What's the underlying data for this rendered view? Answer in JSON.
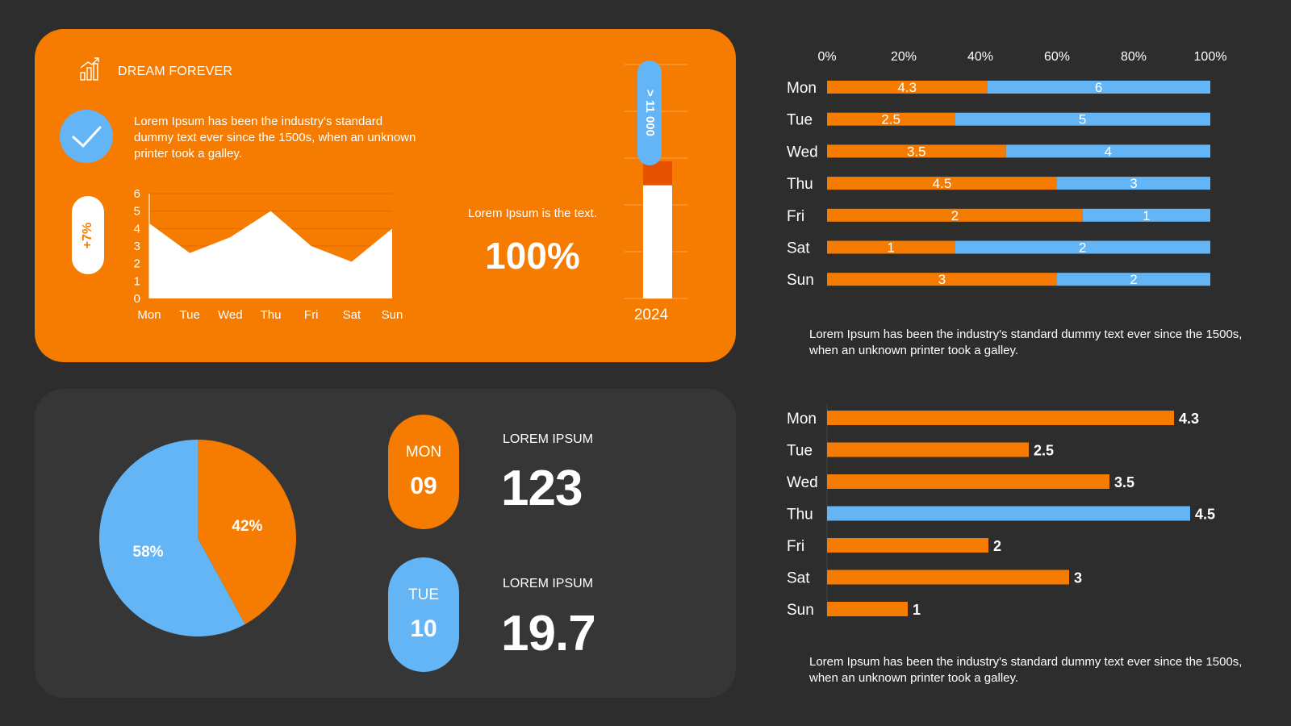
{
  "colors": {
    "background": "#2d2d2d",
    "orange": "#f57c00",
    "blue": "#64b5f6",
    "dark_panel": "#363636",
    "white": "#ffffff"
  },
  "header": {
    "brand_icon": "bar-chart-growth-icon",
    "brand_label": "DREAM FOREVER"
  },
  "intro": {
    "check_icon": "checkmark-icon",
    "text": "Lorem Ipsum has been the industry's standard dummy text ever since the 1500s, when an unknown printer took a galley."
  },
  "growth_badge": "+7%",
  "highlight": {
    "caption": "Lorem Ipsum is the text.",
    "value": "100%"
  },
  "gauge": {
    "label": "> 11 000",
    "year": "2024",
    "level": 0.5
  },
  "stats": [
    {
      "day": "MON",
      "date": "09",
      "label": "LOREM IPSUM",
      "value": "123"
    },
    {
      "day": "TUE",
      "date": "10",
      "label": "LOREM IPSUM",
      "value": "19.7"
    }
  ],
  "paragraphs": {
    "top": "Lorem Ipsum has been the industry's standard dummy text ever since the 1500s, when an unknown printer took a galley.",
    "bottom": "Lorem Ipsum has been the industry's standard dummy text ever since the 1500s, when an unknown printer took a galley."
  },
  "chart_data": [
    {
      "id": "area",
      "type": "area",
      "categories": [
        "Mon",
        "Tue",
        "Wed",
        "Thu",
        "Fri",
        "Sat",
        "Sun"
      ],
      "values": [
        4.3,
        2.6,
        3.5,
        5.0,
        3.0,
        2.1,
        4.0
      ],
      "ylim": [
        0,
        6
      ],
      "yticks": [
        0,
        1,
        2,
        3,
        4,
        5,
        6
      ],
      "grid": true
    },
    {
      "id": "stacked",
      "type": "bar",
      "orientation": "horizontal",
      "stacked": "percent",
      "categories": [
        "Mon",
        "Tue",
        "Wed",
        "Thu",
        "Fri",
        "Sat",
        "Sun"
      ],
      "series": [
        {
          "values": [
            4.3,
            2.5,
            3.5,
            4.5,
            2,
            1,
            3
          ],
          "color": "#f57c00"
        },
        {
          "values": [
            6,
            5,
            4,
            3,
            1,
            2,
            2
          ],
          "color": "#64b5f6"
        }
      ],
      "xticks": [
        "0%",
        "20%",
        "40%",
        "60%",
        "80%",
        "100%"
      ],
      "xaxis_position": "top"
    },
    {
      "id": "simple",
      "type": "bar",
      "orientation": "horizontal",
      "categories": [
        "Mon",
        "Tue",
        "Wed",
        "Thu",
        "Fri",
        "Sat",
        "Sun"
      ],
      "values": [
        4.3,
        2.5,
        3.5,
        4.5,
        2,
        3,
        1
      ],
      "highlight_category": "Thu",
      "bar_color": "#f57c00",
      "highlight_color": "#64b5f6",
      "xlim": [
        0,
        5
      ]
    },
    {
      "id": "pie",
      "type": "pie",
      "slices": [
        {
          "label": "42%",
          "value": 42,
          "color": "#f57c00"
        },
        {
          "label": "58%",
          "value": 58,
          "color": "#64b5f6"
        }
      ]
    }
  ]
}
